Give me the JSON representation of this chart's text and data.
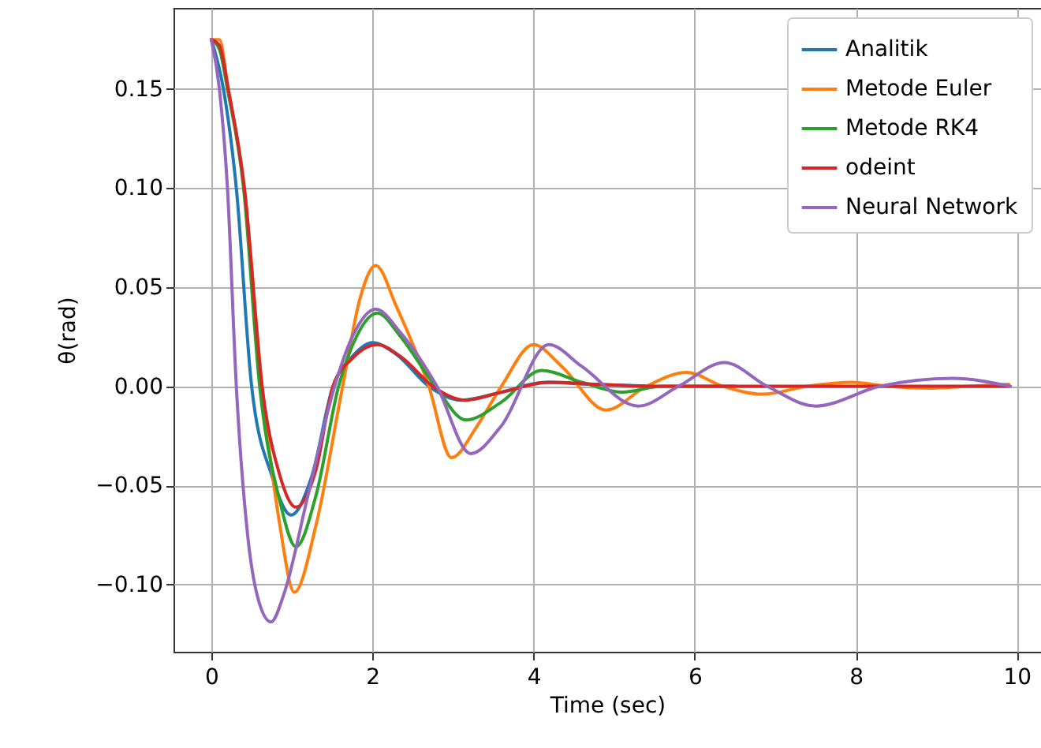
{
  "chart_data": {
    "type": "line",
    "xlabel": "Time (sec)",
    "ylabel": "θ(rad)",
    "xlim": [
      -0.47,
      10.3
    ],
    "ylim": [
      -0.134,
      0.191
    ],
    "xticks": [
      0,
      2,
      4,
      6,
      8,
      10
    ],
    "yticks": [
      {
        "value": -0.1,
        "label": "−0.10"
      },
      {
        "value": -0.05,
        "label": "−0.05"
      },
      {
        "value": 0,
        "label": "0.00"
      },
      {
        "value": 0.05,
        "label": "0.05"
      },
      {
        "value": 0.1,
        "label": "0.10"
      },
      {
        "value": 0.15,
        "label": "0.15"
      }
    ],
    "grid": true,
    "legend": "top right",
    "series": [
      {
        "name": "Analitik",
        "color": "#1f77b4",
        "x": [
          0,
          0.15,
          0.31,
          0.5,
          0.75,
          0.99,
          1.25,
          1.51,
          1.75,
          2.0,
          2.3,
          2.7,
          3.1,
          3.6,
          4.15,
          4.7,
          5.5
        ],
        "values": [
          0.175,
          0.15,
          0.1,
          0,
          -0.045,
          -0.065,
          -0.045,
          0,
          0.015,
          0.022,
          0.016,
          0,
          -0.007,
          -0.003,
          0.002,
          0.001,
          0
        ]
      },
      {
        "name": "Metode Euler",
        "color": "#ff7f0e",
        "x": [
          0,
          0.1,
          0.21,
          0.41,
          0.63,
          0.85,
          1.03,
          1.3,
          1.63,
          1.85,
          2.04,
          2.3,
          2.7,
          2.98,
          3.3,
          3.6,
          4.0,
          4.35,
          4.9,
          5.4,
          5.9,
          6.35,
          6.85,
          7.4,
          7.95,
          8.4,
          8.9,
          9.4,
          9.9
        ],
        "values": [
          0.175,
          0.175,
          0.15,
          0.1,
          0,
          -0.07,
          -0.104,
          -0.07,
          0,
          0.045,
          0.061,
          0.04,
          0,
          -0.036,
          -0.02,
          0,
          0.021,
          0.01,
          -0.012,
          0,
          0.007,
          0,
          -0.004,
          0,
          0.002,
          0,
          -0.001,
          0,
          0.001
        ]
      },
      {
        "name": "Metode RK4",
        "color": "#2ca02c",
        "x": [
          0,
          0.1,
          0.2,
          0.4,
          0.6,
          0.85,
          1.05,
          1.3,
          1.58,
          1.8,
          2.06,
          2.35,
          2.78,
          3.16,
          3.6,
          4.1,
          4.6,
          5.1,
          5.6,
          6.5
        ],
        "values": [
          0.175,
          0.17,
          0.15,
          0.1,
          0,
          -0.058,
          -0.081,
          -0.055,
          0,
          0.025,
          0.037,
          0.025,
          0,
          -0.017,
          -0.008,
          0.008,
          0.002,
          -0.003,
          0,
          0
        ]
      },
      {
        "name": "odeint",
        "color": "#d62728",
        "x": [
          0,
          0.1,
          0.21,
          0.41,
          0.63,
          0.85,
          1.05,
          1.3,
          1.51,
          1.75,
          2.06,
          2.35,
          2.75,
          3.15,
          3.6,
          4.2,
          4.8,
          5.5,
          6.5,
          8,
          9.9
        ],
        "values": [
          0.175,
          0.172,
          0.15,
          0.1,
          0,
          -0.045,
          -0.061,
          -0.042,
          0,
          0.014,
          0.021,
          0.015,
          0,
          -0.007,
          -0.003,
          0.002,
          0.001,
          0,
          0,
          0,
          0
        ]
      },
      {
        "name": "Neural Network",
        "color": "#9467bd",
        "x": [
          0,
          0.1,
          0.2,
          0.31,
          0.45,
          0.6,
          0.74,
          0.9,
          1.2,
          1.53,
          1.75,
          2.04,
          2.35,
          2.8,
          3.22,
          3.6,
          4.19,
          4.6,
          5.3,
          5.8,
          6.37,
          6.9,
          7.5,
          8.3,
          9.2,
          9.92
        ],
        "values": [
          0.175,
          0.15,
          0.1,
          0,
          -0.075,
          -0.11,
          -0.119,
          -0.105,
          -0.055,
          0,
          0.025,
          0.039,
          0.027,
          0,
          -0.034,
          -0.02,
          0.021,
          0.01,
          -0.01,
          0,
          0.012,
          0,
          -0.01,
          0,
          0.004,
          0
        ]
      }
    ]
  }
}
